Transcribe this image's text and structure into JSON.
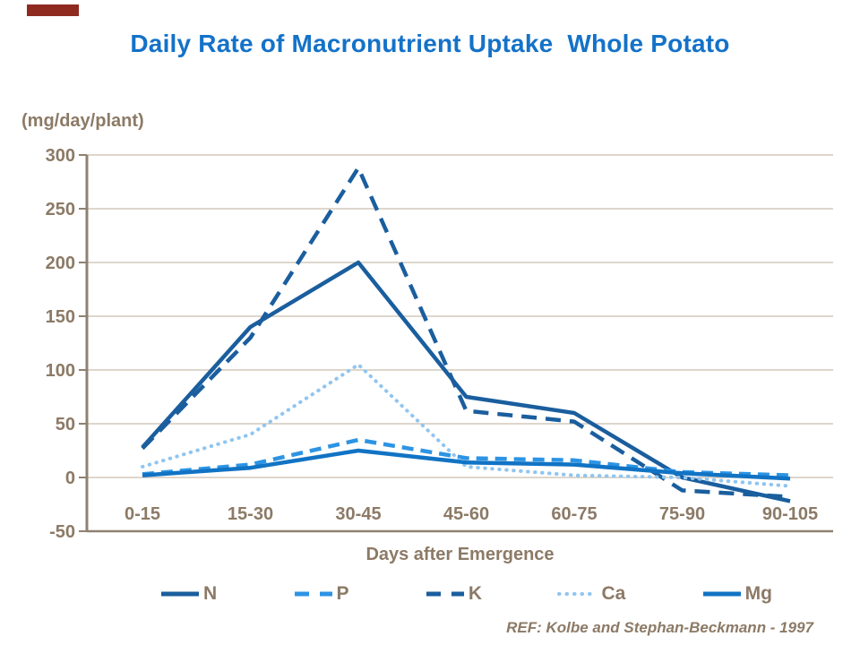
{
  "slide": {
    "title": "Daily Rate of Macronutrient Uptake  Whole Potato",
    "footer_ref": "REF: Kolbe and Stephan-Beckmann - 1997"
  },
  "colors": {
    "title_blue": "#1472C8",
    "label_brown": "#8C7A66",
    "gridline": "#C9BDAE",
    "axis": "#8F8171",
    "accent_bar_red": "#8F2A21"
  },
  "chart_data": {
    "type": "line",
    "title": "Daily Rate of Macronutrient Uptake  Whole Potato",
    "unit_label": "(mg/day/plant)",
    "xlabel": "Days after Emergence",
    "categories": [
      "0-15",
      "15-30",
      "30-45",
      "45-60",
      "60-75",
      "75-90",
      "90-105"
    ],
    "series": [
      {
        "name": "N",
        "style": "solid",
        "color": "#1A5E9E",
        "values": [
          28,
          140,
          200,
          75,
          60,
          0,
          -22
        ]
      },
      {
        "name": "P",
        "style": "dashed",
        "color": "#2D94E4",
        "values": [
          3,
          12,
          35,
          18,
          16,
          5,
          2
        ]
      },
      {
        "name": "K",
        "style": "long-dashed",
        "color": "#1A5E9E",
        "values": [
          27,
          130,
          288,
          62,
          52,
          -12,
          -18
        ]
      },
      {
        "name": "Ca",
        "style": "dotted",
        "color": "#90C5F0",
        "values": [
          10,
          40,
          105,
          10,
          2,
          0,
          -8
        ]
      },
      {
        "name": "Mg",
        "style": "solid",
        "color": "#1173C4",
        "values": [
          2,
          9,
          25,
          14,
          12,
          4,
          -1
        ]
      }
    ],
    "ylim": [
      -50,
      300
    ],
    "ytick_step": 50,
    "grid": true,
    "legend_position": "bottom"
  }
}
